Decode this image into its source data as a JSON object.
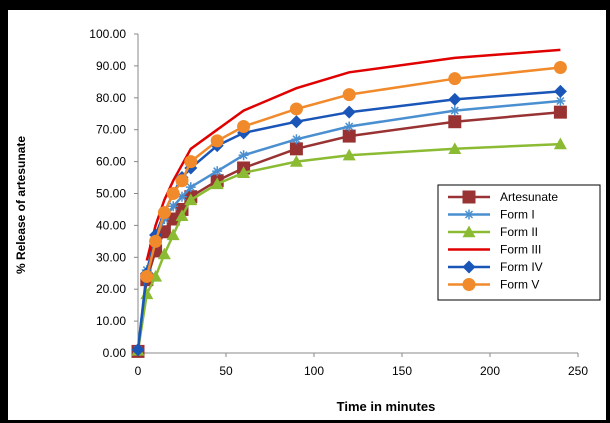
{
  "chart_data": {
    "type": "line",
    "title": "",
    "xlabel": "Time in minutes",
    "ylabel": "% Release of artesunate",
    "xlim": [
      0,
      250
    ],
    "ylim": [
      0,
      100
    ],
    "x_ticks": [
      "0",
      "50",
      "100",
      "150",
      "200",
      "250"
    ],
    "y_ticks": [
      "0.00",
      "10.00",
      "20.00",
      "30.00",
      "40.00",
      "50.00",
      "60.00",
      "70.00",
      "80.00",
      "90.00",
      "100.00"
    ],
    "grid": false,
    "legend_position": "right",
    "series": [
      {
        "name": "Artesunate",
        "color": "#993333",
        "marker": "square",
        "x": [
          0,
          5,
          10,
          15,
          20,
          25,
          30,
          45,
          60,
          90,
          120,
          180,
          240
        ],
        "y": [
          0.5,
          23,
          32,
          38,
          42,
          45,
          49,
          54,
          58,
          64,
          68,
          72.5,
          75.5
        ]
      },
      {
        "name": "Form I",
        "color": "#4a8fd0",
        "marker": "star",
        "x": [
          0,
          5,
          10,
          15,
          20,
          25,
          30,
          45,
          60,
          90,
          120,
          180,
          240
        ],
        "y": [
          1,
          26,
          36,
          42,
          46,
          49,
          52,
          57,
          62,
          67,
          71,
          76,
          79
        ]
      },
      {
        "name": "Form II",
        "color": "#8bbb33",
        "marker": "triangle",
        "x": [
          0,
          5,
          10,
          15,
          20,
          25,
          30,
          45,
          60,
          90,
          120,
          180,
          240
        ],
        "y": [
          0.8,
          18.5,
          24,
          31,
          37,
          43,
          48,
          53,
          56.5,
          60,
          62,
          64,
          65.5
        ]
      },
      {
        "name": "Form III",
        "color": "#e00000",
        "marker": "none",
        "x": [
          5,
          10,
          15,
          20,
          25,
          30,
          45,
          60,
          90,
          120,
          180,
          240
        ],
        "y": [
          29,
          40,
          48,
          54,
          59,
          64,
          70,
          76,
          83,
          88,
          92.5,
          95
        ]
      },
      {
        "name": "Form IV",
        "color": "#1a55b8",
        "marker": "diamond",
        "x": [
          0,
          5,
          10,
          15,
          20,
          25,
          30,
          45,
          60,
          90,
          120,
          180,
          240
        ],
        "y": [
          1,
          25,
          37,
          44,
          50,
          55,
          58,
          65,
          69,
          72.5,
          75.5,
          79.5,
          82
        ]
      },
      {
        "name": "Form V",
        "color": "#f08a2a",
        "marker": "circle",
        "x": [
          5,
          10,
          15,
          20,
          25,
          30,
          45,
          60,
          90,
          120,
          180,
          240
        ],
        "y": [
          24,
          35,
          44,
          50,
          54,
          60,
          66.5,
          71,
          76.5,
          81,
          86,
          89.5
        ]
      }
    ]
  }
}
